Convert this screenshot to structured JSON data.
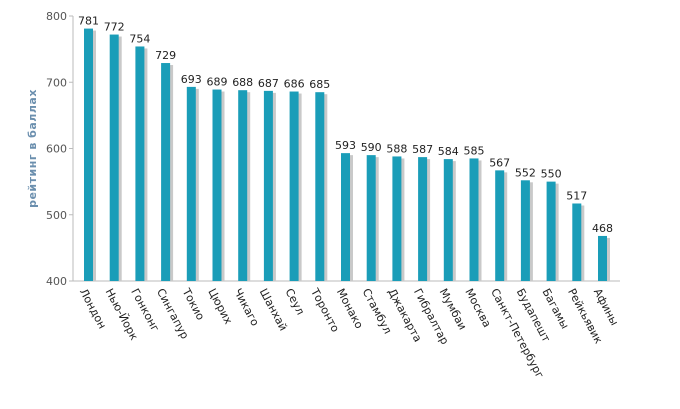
{
  "chart_data": {
    "type": "bar",
    "ylabel": "рейтинг в баллах",
    "xlabel": "",
    "ylim": [
      400,
      800
    ],
    "yticks": [
      400,
      500,
      600,
      700,
      800
    ],
    "grid": false,
    "bar_color": "#1a9db8",
    "shadow_color": "#c9c9c9",
    "highlight_color": "#2222aa",
    "highlight_category": "Москва",
    "categories": [
      "Лондон",
      "Нью-Йорк",
      "Гонконг",
      "Сингапур",
      "Токио",
      "Цюрих",
      "Чикаго",
      "Шанхай",
      "Сеул",
      "Торонто",
      "Монако",
      "Стамбул",
      "Джакарта",
      "Гибралтар",
      "Мумбаи",
      "Москва",
      "Санкт-Петербург",
      "Будапешт",
      "Багамы",
      "Рейкьявик",
      "Афины"
    ],
    "values": [
      781,
      772,
      754,
      729,
      693,
      689,
      688,
      687,
      686,
      685,
      593,
      590,
      588,
      587,
      584,
      585,
      567,
      552,
      550,
      517,
      468
    ]
  }
}
